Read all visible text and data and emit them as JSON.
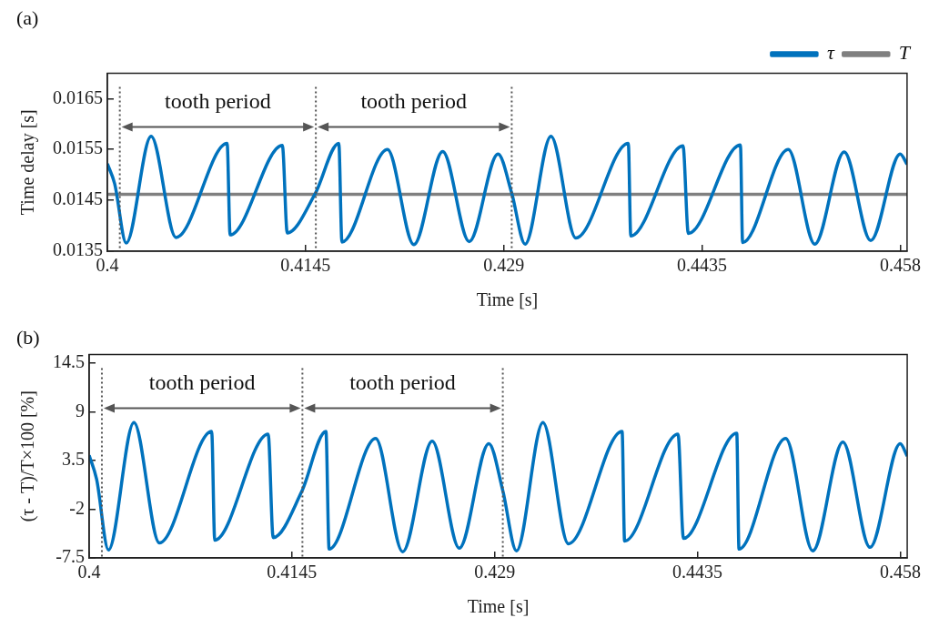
{
  "chart_data": [
    {
      "type": "line",
      "title": "(a)",
      "annotations": [
        "tooth period",
        "tooth period"
      ],
      "xlabel": "Time [s]",
      "ylabel": "Time delay [s]",
      "xlim": [
        0.4,
        0.4585
      ],
      "ylim": [
        0.0135,
        0.017
      ],
      "xticks": [
        0.4,
        0.4145,
        0.429,
        0.4435,
        0.458
      ],
      "yticks": [
        0.0135,
        0.0145,
        0.0155,
        0.0165
      ],
      "legend": "top right",
      "line_style": "solid",
      "marker": "none",
      "x": [
        0.4,
        0.40053,
        0.40138,
        0.4032,
        0.40502,
        0.40876,
        0.40898,
        0.4128,
        0.41316,
        0.4152,
        0.41693,
        0.41716,
        0.42049,
        0.42242,
        0.42453,
        0.42647,
        0.42858,
        0.42958,
        0.43056,
        0.43245,
        0.43427,
        0.43811,
        0.43829,
        0.44211,
        0.4425,
        0.44631,
        0.44647,
        0.44981,
        0.45175,
        0.4539,
        0.45584,
        0.458,
        0.4585
      ],
      "series": [
        {
          "name": "τ",
          "color": "#0072bd",
          "values": [
            0.01522,
            0.01483,
            0.01366,
            0.01576,
            0.01377,
            0.01562,
            0.01382,
            0.01558,
            0.01386,
            0.01463,
            0.01562,
            0.01368,
            0.0155,
            0.01363,
            0.01546,
            0.01369,
            0.01541,
            0.01464,
            0.01364,
            0.01576,
            0.01376,
            0.01562,
            0.0138,
            0.01557,
            0.01385,
            0.01559,
            0.01367,
            0.0155,
            0.01364,
            0.01545,
            0.01371,
            0.01541,
            0.01521
          ]
        },
        {
          "name": "T",
          "color": "#808080",
          "x": [
            0.4,
            0.4585
          ],
          "values": [
            0.01462,
            0.01462
          ]
        }
      ],
      "ref_lines": [
        {
          "axis": "x",
          "value": 0.40091,
          "color": "#555555",
          "line_style": "dotted"
        },
        {
          "axis": "x",
          "value": 0.41525,
          "color": "#555555",
          "line_style": "dotted"
        },
        {
          "axis": "x",
          "value": 0.42958,
          "color": "#555555",
          "line_style": "dotted"
        }
      ]
    },
    {
      "type": "line",
      "title": "(b)",
      "annotations": [
        "tooth period",
        "tooth period"
      ],
      "xlabel": "Time [s]",
      "ylabel": "(τ - T)/T×100 [%]",
      "xlim": [
        0.4,
        0.4585
      ],
      "ylim": [
        -7.5,
        15.5
      ],
      "xticks": [
        0.4,
        0.4145,
        0.429,
        0.4435,
        0.458
      ],
      "yticks": [
        -7.5,
        -2,
        3.5,
        9,
        14.5
      ],
      "line_style": "solid",
      "marker": "none",
      "x": [
        0.4,
        0.40053,
        0.40138,
        0.4032,
        0.40502,
        0.40876,
        0.40898,
        0.4128,
        0.41316,
        0.4152,
        0.41693,
        0.41716,
        0.42049,
        0.42242,
        0.42453,
        0.42647,
        0.42858,
        0.42958,
        0.43056,
        0.43245,
        0.43427,
        0.43811,
        0.43829,
        0.44211,
        0.4425,
        0.44631,
        0.44647,
        0.44981,
        0.45175,
        0.4539,
        0.45584,
        0.458,
        0.4585
      ],
      "series": [
        {
          "color": "#0072bd",
          "values": [
            4.1,
            1.4,
            -6.6,
            7.8,
            -5.8,
            6.8,
            -5.5,
            6.5,
            -5.2,
            0.0,
            6.8,
            -6.5,
            6.0,
            -6.8,
            5.7,
            -6.4,
            5.4,
            0.1,
            -6.7,
            7.8,
            -5.9,
            6.8,
            -5.6,
            6.5,
            -5.3,
            6.6,
            -6.5,
            6.0,
            -6.7,
            5.6,
            -6.3,
            5.4,
            4.0
          ]
        }
      ],
      "ref_lines": [
        {
          "axis": "x",
          "value": 0.40091,
          "color": "#555555",
          "line_style": "dotted"
        },
        {
          "axis": "x",
          "value": 0.41525,
          "color": "#555555",
          "line_style": "dotted"
        },
        {
          "axis": "x",
          "value": 0.42958,
          "color": "#555555",
          "line_style": "dotted"
        }
      ]
    }
  ]
}
